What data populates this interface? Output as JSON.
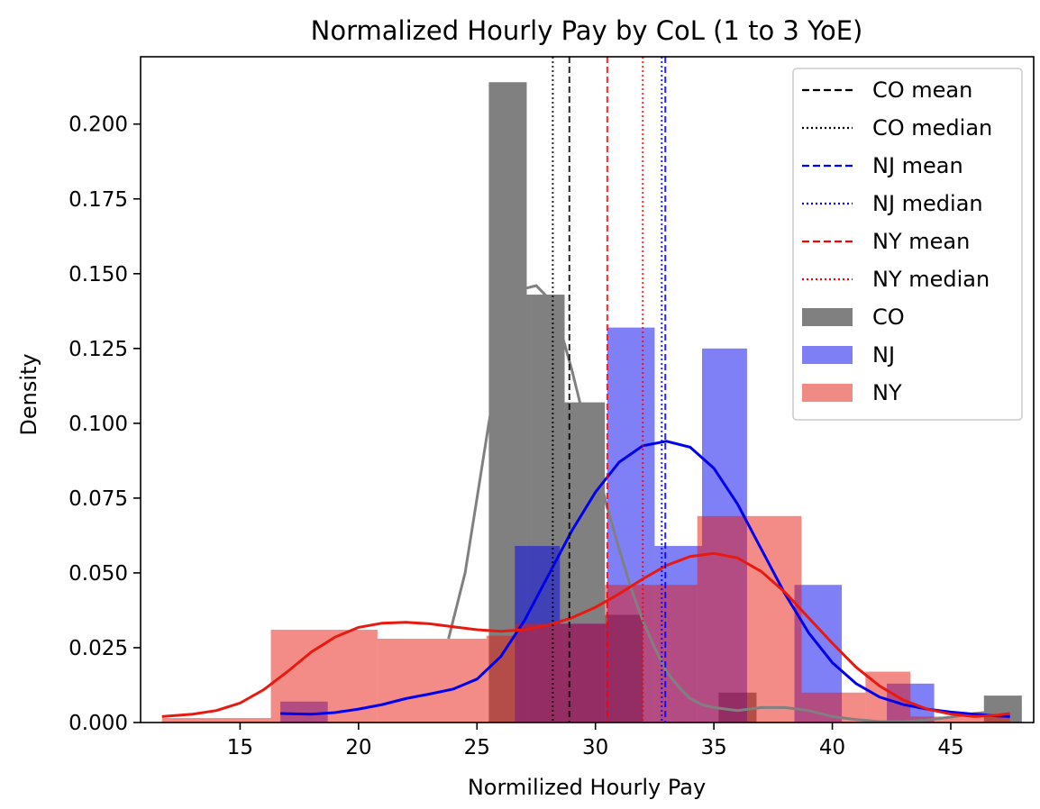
{
  "chart_data": {
    "type": "histogram+kde",
    "title": "Normalized Hourly Pay by CoL (1 to 3 YoE)",
    "xlabel": "Normilized Hourly Pay",
    "ylabel": "Density",
    "xlim": [
      10.8,
      48.5
    ],
    "ylim": [
      0,
      0.2225
    ],
    "xticks": [
      15,
      20,
      25,
      30,
      35,
      40,
      45
    ],
    "yticks": [
      0.0,
      0.025,
      0.05,
      0.075,
      0.1,
      0.125,
      0.15,
      0.175,
      0.2
    ],
    "ytick_labels": [
      "0.000",
      "0.025",
      "0.050",
      "0.075",
      "0.100",
      "0.125",
      "0.150",
      "0.175",
      "0.200"
    ],
    "xtick_labels": [
      "15",
      "20",
      "25",
      "30",
      "35",
      "40",
      "45"
    ],
    "grid": false,
    "legend_position": "top-right",
    "legend": [
      {
        "label": "CO mean",
        "kind": "dashed",
        "color": "#000000"
      },
      {
        "label": "CO median",
        "kind": "dotted",
        "color": "#000000"
      },
      {
        "label": "NJ mean",
        "kind": "dashed",
        "color": "#0000ff"
      },
      {
        "label": "NJ median",
        "kind": "dotted",
        "color": "#0000ff"
      },
      {
        "label": "NY mean",
        "kind": "dashed",
        "color": "#ff0000"
      },
      {
        "label": "NY median",
        "kind": "dotted",
        "color": "#ff0000"
      },
      {
        "label": "CO",
        "kind": "patch",
        "color": "#808080"
      },
      {
        "label": "NJ",
        "kind": "patch",
        "color": "#7f7ff5"
      },
      {
        "label": "NY",
        "kind": "patch",
        "color": "#ef8a84"
      }
    ],
    "series": [
      {
        "name": "CO",
        "color": "#808080",
        "opacity": 1.0,
        "bins": [
          [
            25.5,
            27.1,
            0.214
          ],
          [
            27.1,
            28.7,
            0.143
          ],
          [
            28.7,
            30.4,
            0.107
          ],
          [
            30.4,
            32.0,
            0.036
          ],
          [
            32.0,
            33.6,
            0.0
          ],
          [
            33.6,
            35.2,
            0.0
          ],
          [
            35.2,
            36.8,
            0.01
          ],
          [
            36.8,
            38.4,
            0.0
          ],
          [
            38.4,
            40.0,
            0.0
          ],
          [
            40.0,
            41.6,
            0.0
          ],
          [
            41.6,
            43.2,
            0.0
          ],
          [
            43.2,
            44.8,
            0.0
          ],
          [
            44.8,
            46.4,
            0.0
          ],
          [
            46.4,
            48.0,
            0.009
          ]
        ],
        "kde": [
          [
            23.8,
            0.028
          ],
          [
            24.5,
            0.05
          ],
          [
            25.0,
            0.075
          ],
          [
            25.5,
            0.1
          ],
          [
            26.0,
            0.122
          ],
          [
            26.5,
            0.138
          ],
          [
            27.0,
            0.145
          ],
          [
            27.5,
            0.146
          ],
          [
            28.0,
            0.142
          ],
          [
            28.5,
            0.132
          ],
          [
            29.0,
            0.118
          ],
          [
            29.5,
            0.102
          ],
          [
            30.0,
            0.087
          ],
          [
            30.5,
            0.072
          ],
          [
            31.0,
            0.058
          ],
          [
            31.5,
            0.045
          ],
          [
            32.0,
            0.034
          ],
          [
            32.5,
            0.025
          ],
          [
            33.0,
            0.017
          ],
          [
            33.5,
            0.012
          ],
          [
            34.0,
            0.008
          ],
          [
            34.5,
            0.006
          ],
          [
            35.0,
            0.005
          ],
          [
            36.0,
            0.004
          ],
          [
            37.0,
            0.005
          ],
          [
            38.0,
            0.005
          ],
          [
            39.0,
            0.004
          ],
          [
            40.0,
            0.002
          ],
          [
            41.0,
            0.001
          ],
          [
            42.0,
            0.0003
          ],
          [
            43.0,
            0.0003
          ],
          [
            44.0,
            0.0008
          ],
          [
            45.0,
            0.0018
          ],
          [
            46.0,
            0.003
          ],
          [
            47.0,
            0.0038
          ],
          [
            47.5,
            0.004
          ]
        ],
        "mean": 28.9,
        "median": 28.2
      },
      {
        "name": "NJ",
        "color": "#0000ee",
        "opacity": 0.5,
        "bins": [
          [
            16.7,
            18.7,
            0.007
          ],
          [
            18.7,
            20.7,
            0.0
          ],
          [
            20.7,
            22.6,
            0.0
          ],
          [
            22.6,
            24.6,
            0.0
          ],
          [
            24.6,
            26.6,
            0.0
          ],
          [
            26.6,
            28.5,
            0.059
          ],
          [
            28.5,
            30.5,
            0.033
          ],
          [
            30.5,
            32.5,
            0.132
          ],
          [
            32.5,
            34.5,
            0.059
          ],
          [
            34.5,
            36.4,
            0.125
          ],
          [
            36.4,
            38.4,
            0.0
          ],
          [
            38.4,
            40.4,
            0.046
          ],
          [
            40.4,
            42.3,
            0.0
          ],
          [
            42.3,
            44.3,
            0.013
          ],
          [
            44.3,
            46.3,
            0.0
          ]
        ],
        "kde": [
          [
            16.7,
            0.003
          ],
          [
            18.0,
            0.0028
          ],
          [
            19.0,
            0.0033
          ],
          [
            20.0,
            0.0045
          ],
          [
            21.0,
            0.006
          ],
          [
            22.0,
            0.008
          ],
          [
            23.0,
            0.0095
          ],
          [
            24.0,
            0.0112
          ],
          [
            25.0,
            0.0145
          ],
          [
            26.0,
            0.022
          ],
          [
            27.0,
            0.034
          ],
          [
            28.0,
            0.049
          ],
          [
            29.0,
            0.064
          ],
          [
            30.0,
            0.077
          ],
          [
            31.0,
            0.087
          ],
          [
            32.0,
            0.0925
          ],
          [
            33.0,
            0.094
          ],
          [
            34.0,
            0.092
          ],
          [
            35.0,
            0.085
          ],
          [
            36.0,
            0.073
          ],
          [
            37.0,
            0.058
          ],
          [
            38.0,
            0.043
          ],
          [
            39.0,
            0.03
          ],
          [
            40.0,
            0.02
          ],
          [
            41.0,
            0.013
          ],
          [
            42.0,
            0.0085
          ],
          [
            43.0,
            0.006
          ],
          [
            44.0,
            0.0045
          ],
          [
            45.0,
            0.0035
          ],
          [
            46.0,
            0.0028
          ],
          [
            47.0,
            0.0022
          ],
          [
            47.5,
            0.002
          ]
        ],
        "mean": 32.95,
        "median": 32.8
      },
      {
        "name": "NY",
        "color": "#e8190f",
        "opacity": 0.5,
        "bins": [
          [
            11.7,
            16.3,
            0.0015
          ],
          [
            16.3,
            20.8,
            0.031
          ],
          [
            20.8,
            25.4,
            0.028
          ],
          [
            25.4,
            26.6,
            0.029
          ],
          [
            26.6,
            30.4,
            0.033
          ],
          [
            30.4,
            34.3,
            0.046
          ],
          [
            34.3,
            38.7,
            0.069
          ],
          [
            38.7,
            41.4,
            0.01
          ],
          [
            41.4,
            43.3,
            0.017
          ],
          [
            43.3,
            47.5,
            0.002
          ]
        ],
        "kde": [
          [
            11.7,
            0.002
          ],
          [
            13.0,
            0.0028
          ],
          [
            14.0,
            0.004
          ],
          [
            15.0,
            0.0065
          ],
          [
            16.0,
            0.011
          ],
          [
            17.0,
            0.017
          ],
          [
            18.0,
            0.0235
          ],
          [
            19.0,
            0.0285
          ],
          [
            20.0,
            0.0318
          ],
          [
            21.0,
            0.0332
          ],
          [
            22.0,
            0.0335
          ],
          [
            23.0,
            0.033
          ],
          [
            24.0,
            0.032
          ],
          [
            25.0,
            0.031
          ],
          [
            26.0,
            0.0305
          ],
          [
            27.0,
            0.031
          ],
          [
            28.0,
            0.0325
          ],
          [
            29.0,
            0.035
          ],
          [
            30.0,
            0.0385
          ],
          [
            31.0,
            0.043
          ],
          [
            32.0,
            0.048
          ],
          [
            33.0,
            0.0525
          ],
          [
            34.0,
            0.0555
          ],
          [
            35.0,
            0.0565
          ],
          [
            36.0,
            0.055
          ],
          [
            37.0,
            0.0505
          ],
          [
            38.0,
            0.0435
          ],
          [
            39.0,
            0.035
          ],
          [
            40.0,
            0.0265
          ],
          [
            41.0,
            0.0185
          ],
          [
            42.0,
            0.0122
          ],
          [
            43.0,
            0.0075
          ],
          [
            44.0,
            0.0045
          ],
          [
            45.0,
            0.0028
          ],
          [
            46.0,
            0.002
          ],
          [
            47.0,
            0.0025
          ],
          [
            47.5,
            0.003
          ]
        ],
        "mean": 30.5,
        "median": 32.0
      }
    ]
  }
}
